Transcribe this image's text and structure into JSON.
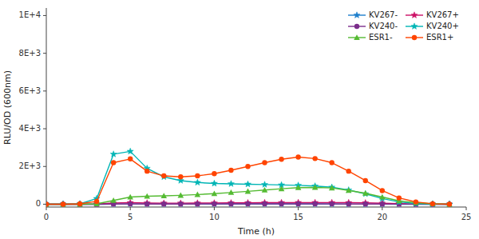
{
  "chart_data": {
    "type": "line",
    "xlabel": "Time (h)",
    "ylabel": "RLU/OD (600nm)",
    "xlim": [
      0,
      25
    ],
    "ylim": [
      -150,
      10400
    ],
    "xticks": [
      0,
      5,
      10,
      15,
      20,
      25
    ],
    "yticks": [
      0,
      {
        "value": 2000,
        "label": "2E+3"
      },
      {
        "value": 4000,
        "label": "4E+3"
      },
      {
        "value": 6000,
        "label": "6E+3"
      },
      {
        "value": 8000,
        "label": "8E+3"
      },
      {
        "value": 10000,
        "label": "1E+4"
      }
    ],
    "grid": false,
    "legend": "upper right",
    "x": [
      0,
      1,
      2,
      3,
      4,
      5,
      6,
      7,
      8,
      9,
      10,
      11,
      12,
      13,
      14,
      15,
      16,
      17,
      18,
      19,
      20,
      21,
      22,
      23,
      24
    ],
    "series": [
      {
        "name": "KV267-",
        "color": "#1e7fcc",
        "marker": "star",
        "values": [
          0,
          0,
          0,
          0,
          10,
          15,
          15,
          12,
          12,
          12,
          12,
          12,
          12,
          12,
          12,
          12,
          10,
          8,
          5,
          3,
          2,
          0,
          0,
          0,
          0
        ]
      },
      {
        "name": "KV267+",
        "color": "#cc1166",
        "marker": "star",
        "values": [
          0,
          0,
          0,
          10,
          60,
          80,
          65,
          55,
          55,
          60,
          65,
          70,
          75,
          80,
          85,
          90,
          88,
          85,
          80,
          70,
          50,
          30,
          15,
          5,
          0
        ]
      },
      {
        "name": "KV240-",
        "color": "#7b2d8b",
        "marker": "circle",
        "values": [
          0,
          0,
          0,
          0,
          10,
          15,
          12,
          10,
          10,
          12,
          15,
          18,
          20,
          20,
          20,
          20,
          18,
          15,
          12,
          10,
          8,
          5,
          2,
          0,
          0
        ]
      },
      {
        "name": "KV240+",
        "color": "#00b5b5",
        "marker": "star",
        "values": [
          0,
          0,
          20,
          300,
          2650,
          2800,
          1900,
          1450,
          1250,
          1150,
          1100,
          1080,
          1060,
          1040,
          1020,
          1000,
          960,
          900,
          750,
          550,
          300,
          120,
          40,
          8,
          0
        ]
      },
      {
        "name": "ESR1-",
        "color": "#55bb33",
        "marker": "triangle",
        "values": [
          0,
          0,
          0,
          20,
          200,
          380,
          420,
          440,
          470,
          510,
          560,
          620,
          680,
          750,
          820,
          880,
          890,
          860,
          730,
          580,
          380,
          180,
          80,
          20,
          0
        ]
      },
      {
        "name": "ESR1+",
        "color": "#ff4400",
        "marker": "circle",
        "values": [
          0,
          0,
          20,
          150,
          2200,
          2400,
          1750,
          1500,
          1450,
          1500,
          1620,
          1800,
          2000,
          2200,
          2380,
          2500,
          2420,
          2200,
          1750,
          1250,
          720,
          330,
          120,
          25,
          0
        ]
      }
    ]
  }
}
